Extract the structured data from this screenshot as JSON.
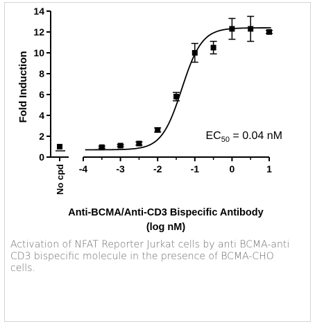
{
  "chart_data": {
    "type": "scatter",
    "xlabel_line1": "Anti-BCMA/Anti-CD3 Bispecific Antibody",
    "xlabel_line2": "(log nM)",
    "ylabel": "Fold Induction",
    "ylim": [
      0,
      14
    ],
    "yticks": [
      "0",
      "2",
      "4",
      "6",
      "8",
      "10",
      "12",
      "14"
    ],
    "xlim": [
      -4,
      1
    ],
    "xticks": [
      "-4",
      "-3",
      "-2",
      "-1",
      "0",
      "1"
    ],
    "control_label": "No cpd",
    "control_point": {
      "y": 1.0
    },
    "annotation": {
      "prefix": "EC",
      "sub": "50",
      "suffix": " = 0.04 nM"
    },
    "series": [
      {
        "points": [
          {
            "x": -3.5,
            "y": 0.95,
            "err": 0.1
          },
          {
            "x": -3.0,
            "y": 1.1,
            "err": 0.1
          },
          {
            "x": -2.5,
            "y": 1.3,
            "err": 0.15
          },
          {
            "x": -2.0,
            "y": 2.6,
            "err": 0.2
          },
          {
            "x": -1.5,
            "y": 5.8,
            "err": 0.4
          },
          {
            "x": -1.0,
            "y": 10.0,
            "err": 0.9
          },
          {
            "x": -0.5,
            "y": 10.5,
            "err": 0.6
          },
          {
            "x": 0.0,
            "y": 12.3,
            "err": 1.0
          },
          {
            "x": 0.5,
            "y": 12.3,
            "err": 1.2
          },
          {
            "x": 1.0,
            "y": 12.0,
            "err": 0.15
          }
        ]
      }
    ]
  },
  "caption": "Activation of NFAT Reporter Jurkat cells by anti BCMA-anti CD3 bispecific molecule in the presence of BCMA-CHO cells."
}
